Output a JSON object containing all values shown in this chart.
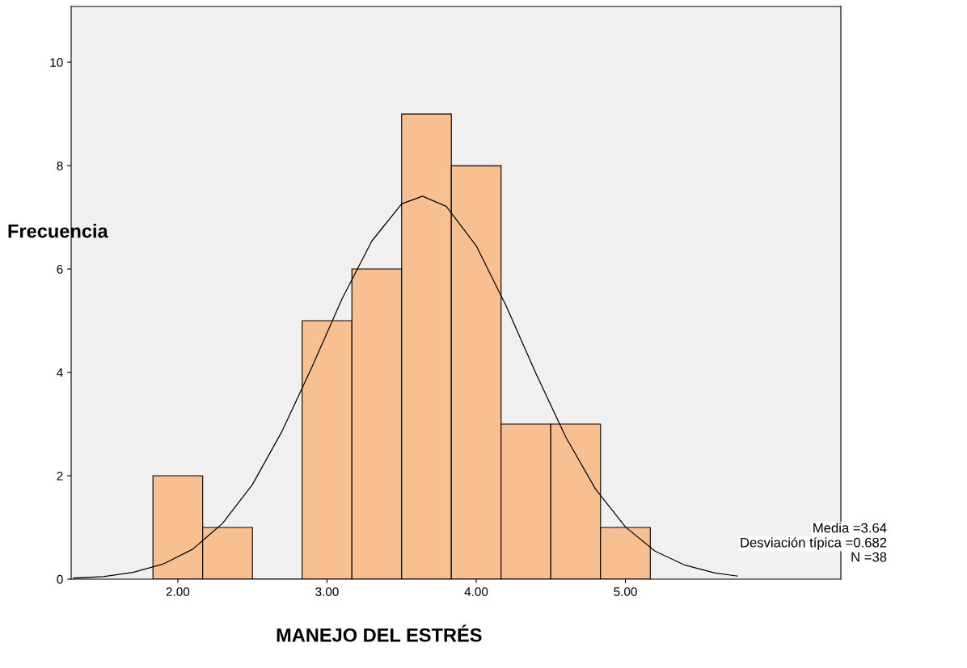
{
  "chart_data": {
    "type": "histogram",
    "xlabel": "MANEJO DEL ESTRÉS",
    "ylabel": "Frecuencia",
    "bins": [
      1.8333,
      2.1667,
      2.5,
      2.8333,
      3.1667,
      3.5,
      3.8333,
      4.1667,
      4.5,
      4.8333,
      5.1667
    ],
    "values": [
      2,
      1,
      0,
      5,
      6,
      9,
      8,
      3,
      3,
      1
    ],
    "color": "#f8c090",
    "series": [
      {
        "type": "line",
        "color": "#000000",
        "x": [
          1.3,
          1.5,
          1.7,
          1.9,
          2.1,
          2.3,
          2.5,
          2.7,
          2.9,
          3.1,
          3.3,
          3.5,
          3.64,
          3.8,
          4.0,
          4.2,
          4.4,
          4.6,
          4.8,
          5.0,
          5.2,
          5.4,
          5.6,
          5.75
        ],
        "values": [
          0.02,
          0.05,
          0.13,
          0.29,
          0.58,
          1.08,
          1.83,
          2.87,
          4.11,
          5.42,
          6.54,
          7.26,
          7.41,
          7.21,
          6.45,
          5.29,
          3.98,
          2.75,
          1.74,
          1.01,
          0.54,
          0.27,
          0.12,
          0.06
        ]
      }
    ],
    "xlim": [
      1.285,
      6.444
    ],
    "ylim": [
      0,
      11.08
    ],
    "xticks": [
      {
        "value": 2,
        "label": "2.00"
      },
      {
        "value": 3,
        "label": "3.00"
      },
      {
        "value": 4,
        "label": "4.00"
      },
      {
        "value": 5,
        "label": "5.00"
      }
    ],
    "yticks": [
      0,
      2,
      4,
      6,
      8,
      10
    ],
    "grid": false,
    "legend": false,
    "annotations": [
      "Media =3.64",
      "Desviación típica =0.682",
      "N =38"
    ]
  }
}
